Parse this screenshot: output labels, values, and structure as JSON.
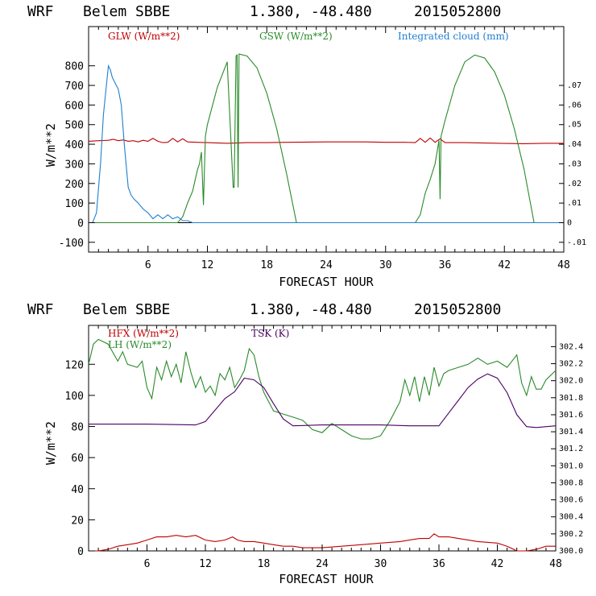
{
  "chart_data": [
    {
      "type": "line",
      "header": {
        "model": "WRF",
        "station": "Belem SBBE",
        "coords": "1.380, -48.480",
        "run": "2015052800"
      },
      "xlabel": "FORECAST HOUR",
      "ylabel": "W/m**2",
      "xlim": [
        0,
        48
      ],
      "ylim": [
        -150,
        1000
      ],
      "x_ticks": [
        6,
        12,
        18,
        24,
        30,
        36,
        42,
        48
      ],
      "y_ticks": [
        -100,
        0,
        100,
        200,
        300,
        400,
        500,
        600,
        700,
        800
      ],
      "y2lim": [
        -0.015,
        0.1
      ],
      "y2_ticks": [
        "-.01",
        "0",
        ".01",
        ".02",
        ".03",
        ".04",
        ".05",
        ".06",
        ".07"
      ],
      "y2_tick_values": [
        -0.01,
        0,
        0.01,
        0.02,
        0.03,
        0.04,
        0.05,
        0.06,
        0.07
      ],
      "zero_line": true,
      "series": [
        {
          "name": "GLW (W/m**2)",
          "color": "#c00000",
          "axis": "left",
          "x": [
            0,
            1,
            2,
            2.5,
            3,
            3.5,
            4,
            4.5,
            5,
            5.5,
            6,
            6.5,
            7,
            7.5,
            8,
            8.5,
            9,
            9.5,
            10,
            11,
            12,
            14,
            16,
            18,
            20,
            24,
            28,
            30,
            32,
            33,
            33.5,
            34,
            34.5,
            35,
            35.5,
            36,
            38,
            40,
            42,
            44,
            46,
            48
          ],
          "y": [
            415,
            418,
            420,
            425,
            418,
            422,
            415,
            418,
            412,
            420,
            415,
            430,
            415,
            408,
            410,
            430,
            412,
            428,
            412,
            410,
            408,
            405,
            408,
            408,
            410,
            412,
            412,
            410,
            410,
            408,
            430,
            410,
            432,
            410,
            428,
            408,
            408,
            406,
            404,
            403,
            405,
            405
          ]
        },
        {
          "name": "GSW (W/m**2)",
          "color": "#2a8a2a",
          "axis": "left",
          "x": [
            0,
            9,
            9.5,
            10,
            10.5,
            11,
            11.2,
            11.4,
            11.6,
            11.8,
            12,
            13,
            14,
            14.6,
            14.7,
            14.9,
            15,
            15.1,
            15.2,
            16,
            17,
            18,
            19,
            20,
            21,
            33,
            33.5,
            34,
            34.5,
            35,
            35.4,
            35.5,
            35.6,
            35.8,
            36,
            37,
            38,
            39,
            40,
            41,
            42,
            43,
            44,
            45,
            48
          ],
          "y": [
            0,
            0,
            30,
            100,
            160,
            270,
            300,
            360,
            90,
            440,
            500,
            690,
            820,
            180,
            180,
            850,
            855,
            180,
            860,
            850,
            790,
            660,
            480,
            250,
            0,
            0,
            40,
            150,
            220,
            300,
            420,
            120,
            440,
            480,
            520,
            700,
            820,
            855,
            840,
            770,
            650,
            480,
            270,
            0,
            0
          ]
        },
        {
          "name": "Integrated cloud (mm)",
          "color": "#1f7fd0",
          "axis": "right",
          "x": [
            0,
            0.4,
            0.8,
            1.2,
            1.5,
            1.8,
            2,
            2.2,
            2.4,
            2.6,
            2.8,
            3,
            3.3,
            3.6,
            4,
            4.3,
            4.6,
            5,
            5.5,
            6,
            6.5,
            7,
            7.5,
            8,
            8.5,
            9,
            9.5,
            10,
            10.5,
            11,
            48
          ],
          "y": [
            0,
            0,
            0.005,
            0.03,
            0.055,
            0.07,
            0.08,
            0.078,
            0.074,
            0.072,
            0.07,
            0.068,
            0.06,
            0.04,
            0.018,
            0.014,
            0.012,
            0.01,
            0.007,
            0.005,
            0.002,
            0.004,
            0.002,
            0.004,
            0.002,
            0.003,
            0.001,
            0.001,
            0,
            0,
            0
          ]
        }
      ]
    },
    {
      "type": "line",
      "header": {
        "model": "WRF",
        "station": "Belem SBBE",
        "coords": "1.380, -48.480",
        "run": "2015052800"
      },
      "xlabel": "FORECAST HOUR",
      "ylabel": "W/m**2",
      "xlim": [
        0,
        48
      ],
      "ylim": [
        0,
        145
      ],
      "x_ticks": [
        6,
        12,
        18,
        24,
        30,
        36,
        42,
        48
      ],
      "y_ticks": [
        0,
        20,
        40,
        60,
        80,
        100,
        120
      ],
      "y2lim": [
        300.0,
        302.65
      ],
      "y2_ticks": [
        "300.0",
        "300.2",
        "300.4",
        "300.6",
        "300.8",
        "301.0",
        "301.2",
        "301.4",
        "301.6",
        "301.8",
        "302.0",
        "302.2",
        "302.4"
      ],
      "y2_tick_values": [
        300.0,
        300.2,
        300.4,
        300.6,
        300.8,
        301.0,
        301.2,
        301.4,
        301.6,
        301.8,
        302.0,
        302.2,
        302.4
      ],
      "series": [
        {
          "name": "HFX (W/m**2)",
          "color": "#c00000",
          "axis": "left",
          "x": [
            0,
            1,
            2,
            3,
            4,
            5,
            6,
            7,
            8,
            9,
            10,
            11,
            12,
            13,
            14,
            14.8,
            15.3,
            16,
            17,
            18,
            19,
            20,
            21,
            22,
            24,
            26,
            28,
            30,
            32,
            34,
            35,
            35.5,
            36,
            37,
            38,
            40,
            42,
            43,
            44,
            45,
            46,
            47,
            48
          ],
          "y": [
            0,
            0,
            1,
            3,
            4,
            5,
            7,
            9,
            9,
            10,
            9,
            10,
            7,
            6,
            7,
            9,
            7,
            6,
            6,
            5,
            4,
            3,
            3,
            2,
            2,
            3,
            4,
            5,
            6,
            8,
            8,
            11,
            9,
            9,
            8,
            6,
            5,
            3,
            0,
            0,
            1,
            3,
            3
          ]
        },
        {
          "name": "LH (W/m**2)",
          "color": "#2a8a2a",
          "axis": "left",
          "x": [
            0,
            0.5,
            1,
            2,
            3,
            3.5,
            4,
            5,
            5.5,
            6,
            6.5,
            7,
            7.5,
            8,
            8.5,
            9,
            9.5,
            10,
            10.5,
            11,
            11.5,
            12,
            12.5,
            13,
            13.5,
            14,
            14.5,
            15,
            15.5,
            16,
            16.5,
            17,
            17.5,
            18,
            18.5,
            19,
            20,
            21,
            22,
            23,
            24,
            25,
            26,
            27,
            28,
            29,
            30,
            31,
            32,
            32.5,
            33,
            33.5,
            34,
            34.5,
            35,
            35.5,
            36,
            36.5,
            37,
            38,
            39,
            40,
            41,
            42,
            43,
            44,
            44.5,
            45,
            45.5,
            46,
            46.5,
            47,
            48
          ],
          "y": [
            120,
            133,
            136,
            133,
            122,
            128,
            120,
            118,
            122,
            105,
            98,
            118,
            110,
            122,
            112,
            120,
            108,
            128,
            115,
            105,
            112,
            102,
            106,
            100,
            114,
            110,
            118,
            105,
            110,
            116,
            130,
            126,
            112,
            102,
            96,
            90,
            88,
            86,
            84,
            78,
            76,
            82,
            78,
            74,
            72,
            72,
            74,
            84,
            96,
            110,
            100,
            112,
            96,
            112,
            100,
            118,
            106,
            114,
            116,
            118,
            120,
            124,
            120,
            122,
            118,
            126,
            108,
            100,
            112,
            104,
            104,
            110,
            116
          ]
        },
        {
          "name": "TSK (K)",
          "color": "#4b0060",
          "axis": "right",
          "x": [
            0,
            6,
            11,
            12,
            14,
            15,
            16,
            17,
            18,
            19,
            20,
            21,
            24,
            30,
            33,
            36,
            37,
            38,
            39,
            40,
            41,
            42,
            43,
            44,
            45,
            46,
            48
          ],
          "y": [
            301.49,
            301.49,
            301.48,
            301.52,
            301.79,
            301.87,
            302.03,
            302.01,
            301.92,
            301.73,
            301.55,
            301.47,
            301.48,
            301.48,
            301.47,
            301.47,
            301.62,
            301.77,
            301.92,
            302.02,
            302.08,
            302.03,
            301.86,
            301.6,
            301.46,
            301.45,
            301.47
          ]
        }
      ]
    }
  ]
}
